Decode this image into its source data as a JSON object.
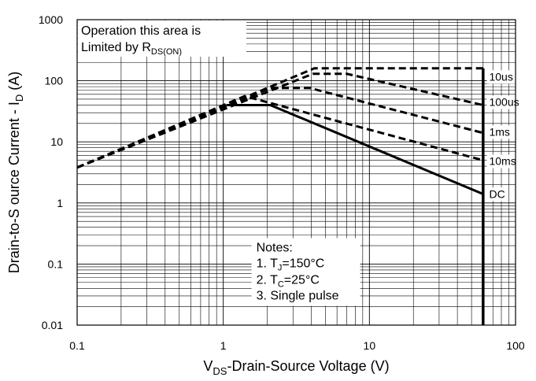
{
  "chart_data": {
    "type": "line",
    "title": "",
    "xlabel": {
      "main": "V",
      "sub": "DS",
      "rest": "-Drain-Source Voltage (V)"
    },
    "ylabel": {
      "main": "Drain-to-S ource Current - I",
      "sub": "D",
      "rest": " (A)"
    },
    "x_scale": "log",
    "y_scale": "log",
    "xlim": [
      0.1,
      100
    ],
    "ylim": [
      0.01,
      1000
    ],
    "x_ticks": [
      "0.1",
      "1",
      "10",
      "100"
    ],
    "y_ticks": [
      "0.01",
      "0.1",
      "1",
      "10",
      "100",
      "1000"
    ],
    "grid": true,
    "limit_line": {
      "x": 60,
      "style": "solid"
    },
    "series": [
      {
        "name": "10us",
        "style": "dashed",
        "label_at": {
          "x": 66,
          "y": 104
        },
        "points": [
          [
            0.1,
            3.8
          ],
          [
            4.2,
            160
          ],
          [
            60,
            160
          ],
          [
            60,
            120
          ]
        ]
      },
      {
        "name": "100us",
        "style": "dashed",
        "label_at": {
          "x": 66,
          "y": 40
        },
        "points": [
          [
            0.1,
            3.8
          ],
          [
            4.1,
            130
          ],
          [
            7,
            130
          ],
          [
            60,
            40
          ]
        ]
      },
      {
        "name": "1ms",
        "style": "dashed",
        "label_at": {
          "x": 66,
          "y": 13
        },
        "points": [
          [
            0.1,
            3.8
          ],
          [
            2.1,
            76
          ],
          [
            3.9,
            76
          ],
          [
            60,
            14
          ]
        ]
      },
      {
        "name": "10ms",
        "style": "dashed",
        "label_at": {
          "x": 66,
          "y": 4.3
        },
        "points": [
          [
            0.1,
            3.8
          ],
          [
            1.4,
            56
          ],
          [
            60,
            5
          ]
        ]
      },
      {
        "name": "DC",
        "style": "solid",
        "label_at": {
          "x": 66,
          "y": 1.25
        },
        "points": [
          [
            1.05,
            40
          ],
          [
            2.1,
            40
          ],
          [
            60,
            1.4
          ]
        ]
      }
    ],
    "annotations": {
      "top_left": {
        "line1": "Operation this area is",
        "line2_main": "Limited  by R",
        "line2_sub": "DS(ON)"
      },
      "notes": {
        "title": "Notes:",
        "n1_main": "1. T",
        "n1_sub": "J",
        "n1_rest": "=150°C",
        "n2_main": "2. T",
        "n2_sub": "C",
        "n2_rest": "=25°C",
        "n3": "3. Single pulse"
      }
    }
  }
}
